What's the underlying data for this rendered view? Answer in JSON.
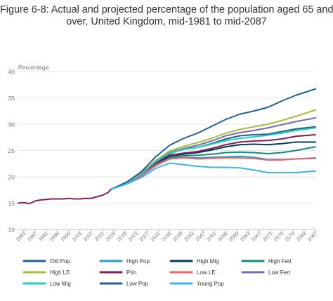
{
  "figure": {
    "title_line1": "Figure 6-8: Actual and projected percentage of the population aged 65 and",
    "title_line2": "over, United Kingdom, mid-1981 to mid-2087"
  },
  "chart_data": {
    "type": "line",
    "title": "Figure 6-8: Actual and projected percentage of the population aged 65 and over, United Kingdom, mid-1981 to mid-2087",
    "ylabel": "Percentage",
    "xlabel": "",
    "ylim": [
      10,
      40
    ],
    "yticks": [
      10,
      15,
      20,
      25,
      30,
      35,
      40
    ],
    "xlim": [
      1981,
      2087
    ],
    "xticks": [
      1983,
      1987,
      1991,
      1995,
      1999,
      2003,
      2007,
      2011,
      2015,
      2019,
      2023,
      2027,
      2031,
      2035,
      2039,
      2043,
      2047,
      2051,
      2055,
      2059,
      2063,
      2067,
      2071,
      2075,
      2079,
      2083,
      2087
    ],
    "grid": "horizontal",
    "legend_position": "bottom",
    "actual": {
      "x": [
        1981,
        1983,
        1985,
        1987,
        1989,
        1991,
        1993,
        1995,
        1997,
        1999,
        2001,
        2003,
        2005,
        2007,
        2009,
        2011,
        2013,
        2014
      ],
      "y": [
        15.0,
        15.1,
        14.9,
        15.4,
        15.6,
        15.7,
        15.8,
        15.8,
        15.8,
        15.9,
        15.8,
        15.8,
        15.9,
        15.9,
        16.2,
        16.5,
        17.0,
        17.6
      ]
    },
    "series": [
      {
        "name": "Old Pop",
        "color": "#206095",
        "x": [
          2014,
          2020,
          2025,
          2030,
          2035,
          2040,
          2045,
          2050,
          2055,
          2060,
          2065,
          2070,
          2075,
          2080,
          2087
        ],
        "y": [
          17.6,
          19.0,
          20.6,
          22.8,
          24.4,
          25.3,
          25.6,
          26.3,
          27.2,
          27.8,
          28.0,
          28.1,
          28.6,
          29.1,
          29.5
        ]
      },
      {
        "name": "High Pop",
        "color": "#27a0cc",
        "x": [
          2014,
          2020,
          2025,
          2030,
          2035,
          2040,
          2045,
          2050,
          2055,
          2060,
          2065,
          2070,
          2075,
          2080,
          2087
        ],
        "y": [
          17.6,
          18.8,
          20.2,
          22.1,
          23.4,
          23.7,
          23.6,
          23.7,
          23.8,
          23.9,
          23.7,
          23.3,
          23.3,
          23.4,
          23.6
        ]
      },
      {
        "name": "High Mig",
        "color": "#003c57",
        "x": [
          2014,
          2020,
          2025,
          2030,
          2035,
          2040,
          2045,
          2050,
          2055,
          2060,
          2065,
          2070,
          2075,
          2080,
          2087
        ],
        "y": [
          17.6,
          18.9,
          20.4,
          22.4,
          23.9,
          24.3,
          24.6,
          25.1,
          25.7,
          26.1,
          26.2,
          26.1,
          26.3,
          26.6,
          26.6
        ]
      },
      {
        "name": "High Fert",
        "color": "#118c7b",
        "x": [
          2014,
          2020,
          2025,
          2030,
          2035,
          2040,
          2045,
          2050,
          2055,
          2060,
          2065,
          2070,
          2075,
          2080,
          2087
        ],
        "y": [
          17.6,
          18.8,
          20.3,
          22.3,
          23.6,
          24.0,
          24.1,
          24.3,
          24.6,
          24.7,
          24.6,
          24.4,
          24.6,
          25.0,
          25.7
        ]
      },
      {
        "name": "High LE",
        "color": "#a8bd3a",
        "x": [
          2014,
          2020,
          2025,
          2030,
          2035,
          2040,
          2045,
          2050,
          2055,
          2060,
          2065,
          2070,
          2075,
          2080,
          2087
        ],
        "y": [
          17.6,
          19.0,
          20.7,
          23.1,
          24.9,
          25.8,
          26.5,
          27.3,
          28.3,
          29.0,
          29.5,
          30.0,
          30.7,
          31.5,
          32.7
        ]
      },
      {
        "name": "Prin",
        "color": "#871a5b",
        "x": [
          2014,
          2020,
          2025,
          2030,
          2035,
          2040,
          2045,
          2050,
          2055,
          2060,
          2065,
          2070,
          2075,
          2080,
          2087
        ],
        "y": [
          17.6,
          18.9,
          20.5,
          22.6,
          24.1,
          24.5,
          24.8,
          25.4,
          26.1,
          26.6,
          26.8,
          26.9,
          27.2,
          27.7,
          28.0
        ]
      },
      {
        "name": "Low LE",
        "color": "#f66068",
        "x": [
          2014,
          2020,
          2025,
          2030,
          2035,
          2040,
          2045,
          2050,
          2055,
          2060,
          2065,
          2070,
          2075,
          2080,
          2087
        ],
        "y": [
          17.6,
          18.8,
          20.3,
          22.2,
          23.4,
          23.6,
          23.4,
          23.5,
          23.6,
          23.6,
          23.5,
          23.2,
          23.2,
          23.4,
          23.5
        ]
      },
      {
        "name": "Low Fert",
        "color": "#746cb1",
        "x": [
          2014,
          2020,
          2025,
          2030,
          2035,
          2040,
          2045,
          2050,
          2055,
          2060,
          2065,
          2070,
          2075,
          2080,
          2087
        ],
        "y": [
          17.6,
          19.0,
          20.7,
          22.9,
          24.6,
          25.4,
          26.0,
          26.8,
          27.8,
          28.4,
          28.8,
          29.3,
          29.9,
          30.5,
          31.2
        ]
      },
      {
        "name": "Low Mig",
        "color": "#22d0b6",
        "x": [
          2014,
          2020,
          2025,
          2030,
          2035,
          2040,
          2045,
          2050,
          2055,
          2060,
          2065,
          2070,
          2075,
          2080,
          2087
        ],
        "y": [
          17.6,
          19.0,
          20.6,
          22.9,
          24.5,
          25.2,
          25.6,
          26.2,
          26.9,
          27.3,
          27.6,
          27.9,
          28.3,
          28.8,
          29.3
        ]
      },
      {
        "name": "Low Pop",
        "color": "#206095",
        "x": [
          2014,
          2020,
          2025,
          2030,
          2035,
          2040,
          2045,
          2050,
          2055,
          2060,
          2065,
          2070,
          2075,
          2080,
          2087
        ],
        "y": [
          17.6,
          19.1,
          21.0,
          23.8,
          26.0,
          27.3,
          28.3,
          29.6,
          30.9,
          31.9,
          32.5,
          33.2,
          34.4,
          35.5,
          36.7
        ]
      },
      {
        "name": "Young Pop",
        "color": "#3fb4e6",
        "x": [
          2014,
          2020,
          2025,
          2030,
          2035,
          2040,
          2045,
          2050,
          2055,
          2060,
          2065,
          2070,
          2075,
          2080,
          2087
        ],
        "y": [
          17.6,
          18.7,
          19.9,
          21.6,
          22.6,
          22.3,
          22.0,
          21.8,
          21.8,
          21.7,
          21.3,
          20.8,
          20.8,
          20.8,
          21.1
        ]
      }
    ]
  }
}
